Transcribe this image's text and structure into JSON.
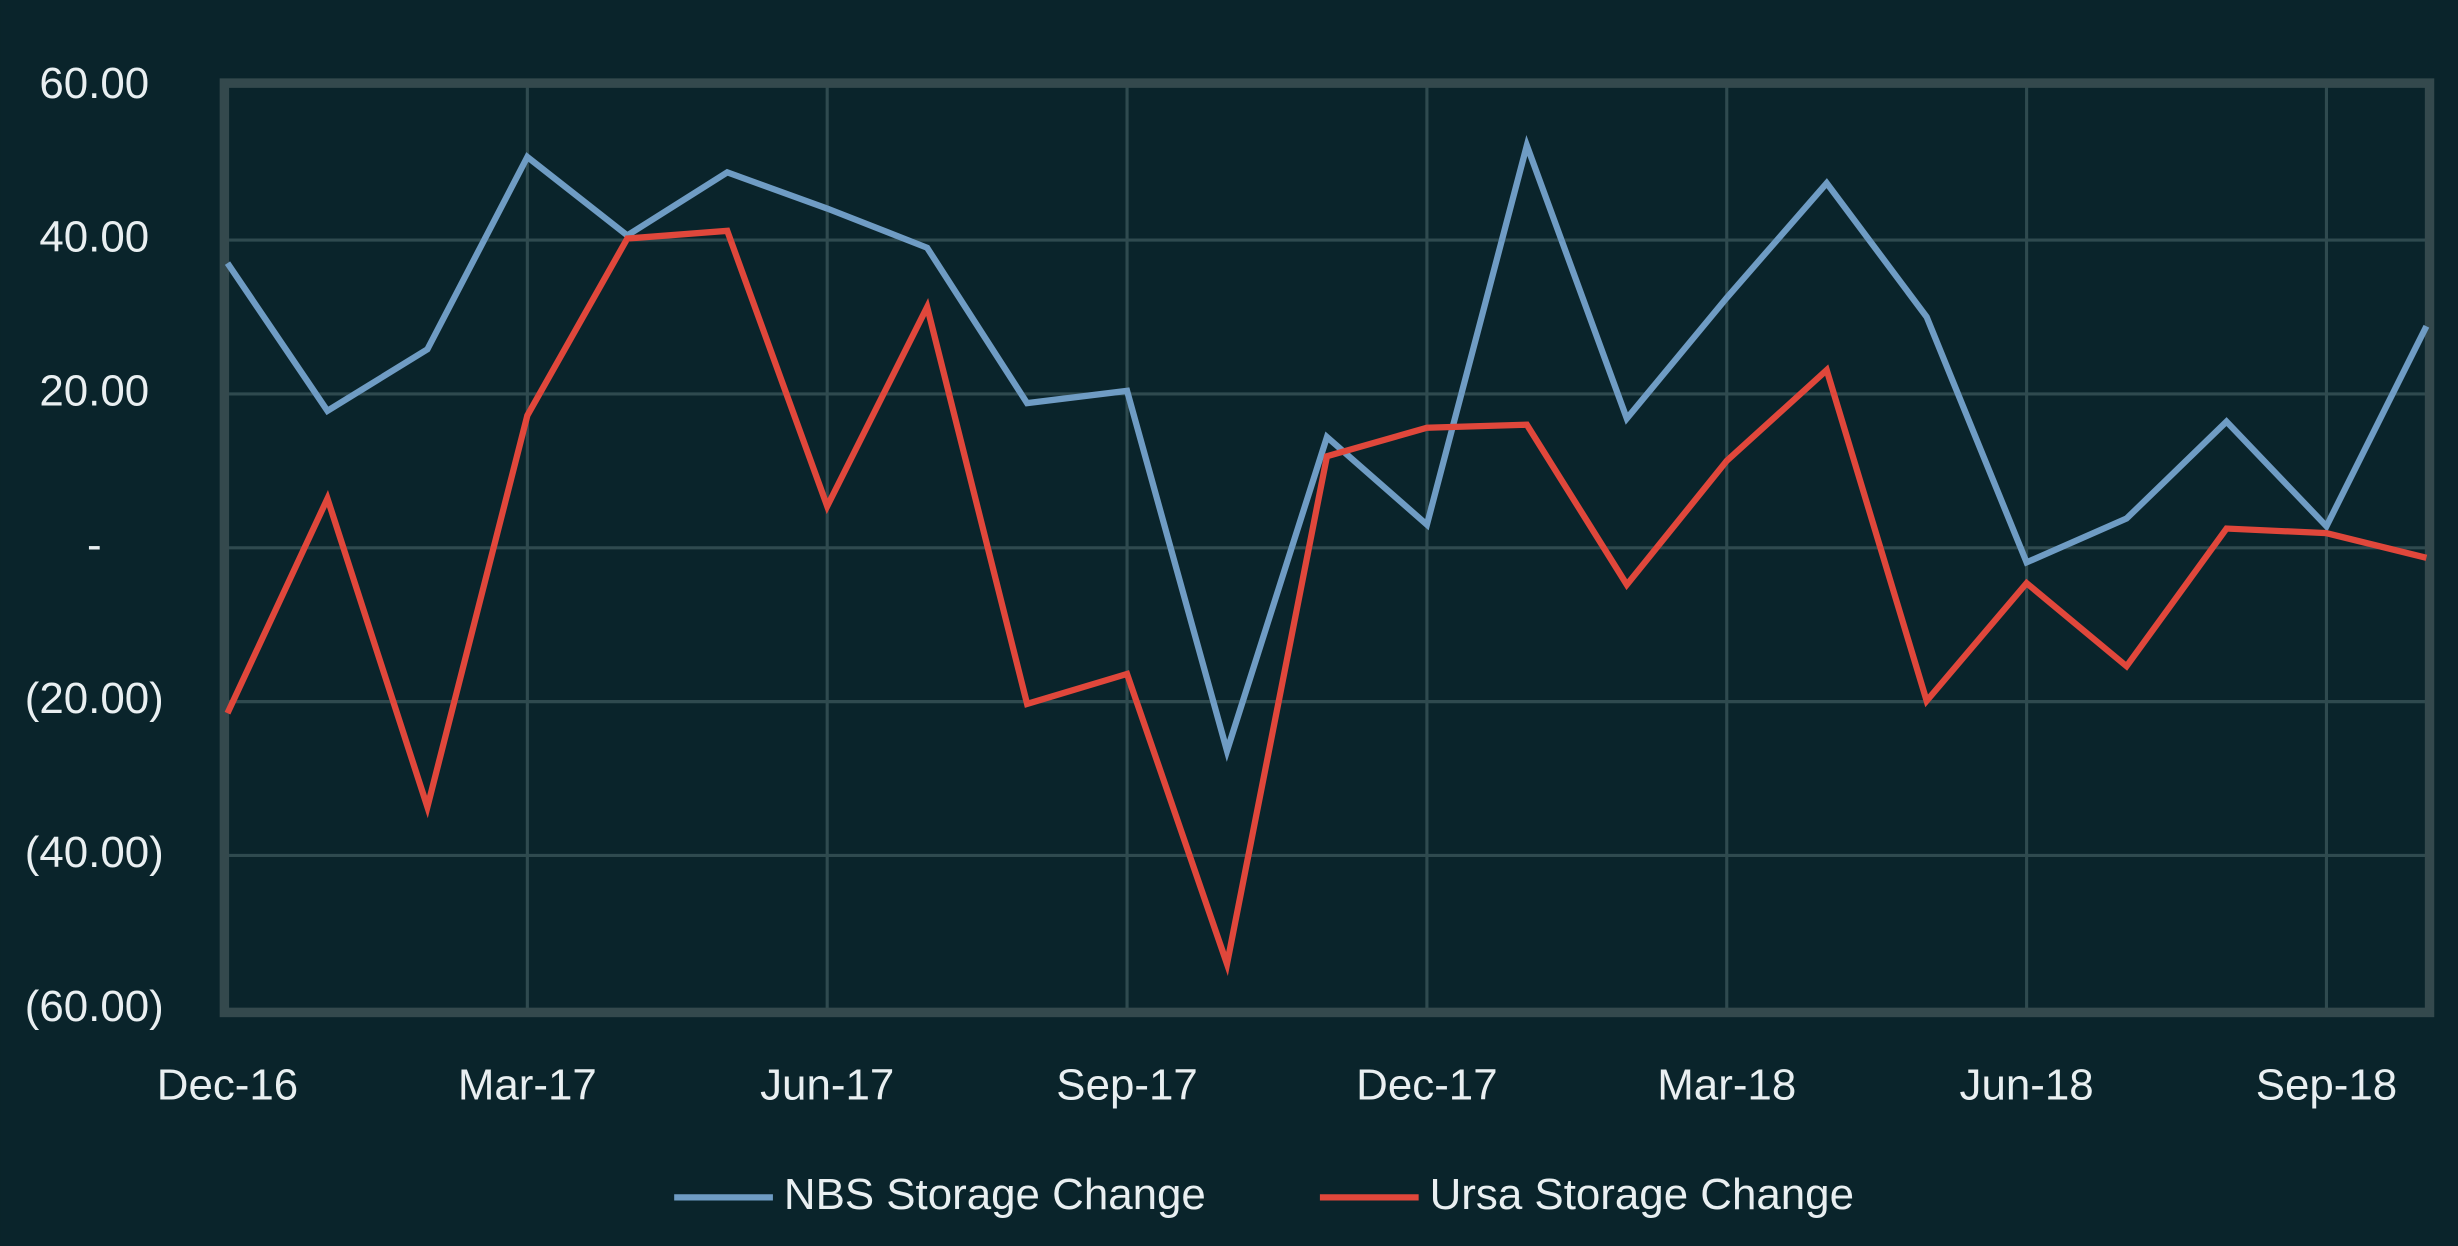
{
  "chart_data": {
    "type": "line",
    "categories": [
      "Dec-16",
      null,
      null,
      "Mar-17",
      null,
      null,
      "Jun-17",
      null,
      null,
      "Sep-17",
      null,
      null,
      "Dec-17",
      null,
      null,
      "Mar-18",
      null,
      null,
      "Jun-18",
      null,
      null,
      "Sep-18",
      null
    ],
    "series": [
      {
        "name": "NBS Storage Change",
        "color": "#6f9cc4",
        "values": [
          37,
          17.8,
          25.8,
          50.8,
          40.6,
          48.8,
          44.1,
          39.0,
          18.8,
          20.4,
          -26.4,
          14.4,
          3.0,
          52.3,
          16.8,
          32.5,
          47.4,
          30.0,
          -1.9,
          3.8,
          16.4,
          2.8,
          28.8
        ]
      },
      {
        "name": "Ursa Storage Change",
        "color": "#e0473b",
        "values": [
          -21.5,
          6.4,
          -33.7,
          17.2,
          40.2,
          41.2,
          5.4,
          31.3,
          -20.3,
          -16.4,
          -54.1,
          11.9,
          15.6,
          16.0,
          -4.8,
          11.3,
          23.1,
          -19.9,
          -4.6,
          -15.4,
          2.5,
          1.9,
          -1.3
        ]
      }
    ],
    "ylim": [
      -60,
      60
    ],
    "yticks": [
      {
        "value": 60,
        "label": "60.00"
      },
      {
        "value": 40,
        "label": "40.00"
      },
      {
        "value": 20,
        "label": "20.00"
      },
      {
        "value": 0,
        "label": "-"
      },
      {
        "value": -20,
        "label": "(20.00)"
      },
      {
        "value": -40,
        "label": "(40.00)"
      },
      {
        "value": -60,
        "label": "(60.00)"
      }
    ],
    "grid": true,
    "legend": "bottom"
  }
}
